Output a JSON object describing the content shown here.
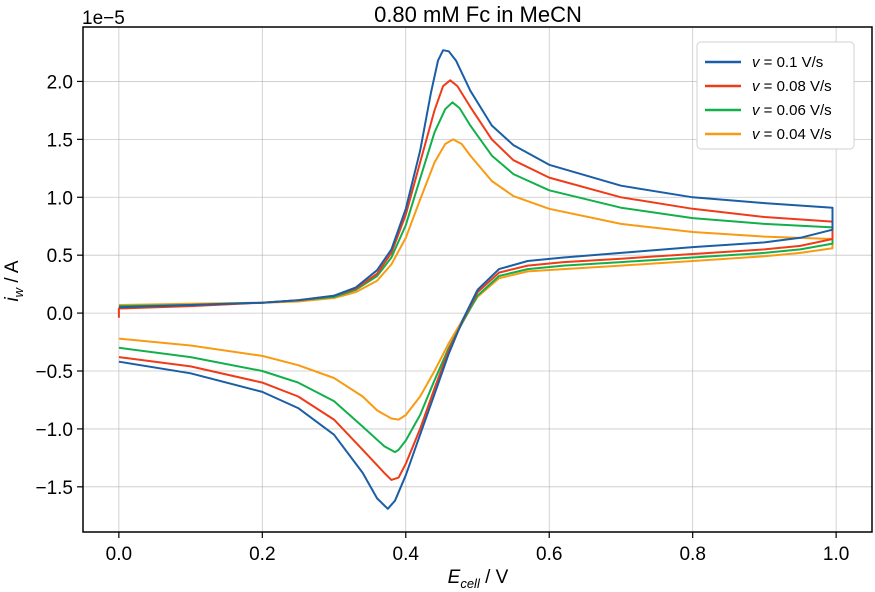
{
  "chart_data": {
    "type": "line",
    "title": "0.80 mM Fc in MeCN",
    "xlabel_main": "E",
    "xlabel_sub": "cell",
    "xlabel_unit": " / V",
    "ylabel_main": "i",
    "ylabel_sub": "w",
    "ylabel_unit": " / A",
    "y_offset_label": "1e−5",
    "xlim": [
      -0.05,
      1.05
    ],
    "ylim": [
      -1.89,
      2.47
    ],
    "x_ticks": [
      0.0,
      0.2,
      0.4,
      0.6,
      0.8,
      1.0
    ],
    "x_tick_labels": [
      "0.0",
      "0.2",
      "0.4",
      "0.6",
      "0.8",
      "1.0"
    ],
    "y_ticks": [
      -1.5,
      -1.0,
      -0.5,
      0.0,
      0.5,
      1.0,
      1.5,
      2.0
    ],
    "y_tick_labels": [
      "−1.5",
      "−1.0",
      "−0.5",
      "0.0",
      "0.5",
      "1.0",
      "1.5",
      "2.0"
    ],
    "grid": true,
    "legend_position": "top-right",
    "legend_prefix": "v = ",
    "series": [
      {
        "name": "0.1 V/s",
        "color": "#1a5fa6",
        "forward": [
          [
            0.0,
            0.05
          ],
          [
            0.1,
            0.07
          ],
          [
            0.2,
            0.09
          ],
          [
            0.25,
            0.11
          ],
          [
            0.3,
            0.15
          ],
          [
            0.33,
            0.22
          ],
          [
            0.36,
            0.37
          ],
          [
            0.38,
            0.55
          ],
          [
            0.4,
            0.9
          ],
          [
            0.42,
            1.4
          ],
          [
            0.435,
            1.9
          ],
          [
            0.445,
            2.18
          ],
          [
            0.452,
            2.27
          ],
          [
            0.46,
            2.26
          ],
          [
            0.47,
            2.18
          ],
          [
            0.49,
            1.92
          ],
          [
            0.52,
            1.62
          ],
          [
            0.55,
            1.45
          ],
          [
            0.6,
            1.28
          ],
          [
            0.7,
            1.1
          ],
          [
            0.8,
            1.0
          ],
          [
            0.9,
            0.95
          ],
          [
            0.995,
            0.91
          ]
        ],
        "reverse": [
          [
            0.995,
            0.72
          ],
          [
            0.95,
            0.65
          ],
          [
            0.9,
            0.61
          ],
          [
            0.8,
            0.57
          ],
          [
            0.7,
            0.52
          ],
          [
            0.62,
            0.48
          ],
          [
            0.57,
            0.45
          ],
          [
            0.53,
            0.38
          ],
          [
            0.5,
            0.2
          ],
          [
            0.48,
            -0.05
          ],
          [
            0.46,
            -0.35
          ],
          [
            0.44,
            -0.7
          ],
          [
            0.42,
            -1.05
          ],
          [
            0.4,
            -1.4
          ],
          [
            0.385,
            -1.62
          ],
          [
            0.375,
            -1.69
          ],
          [
            0.36,
            -1.6
          ],
          [
            0.34,
            -1.38
          ],
          [
            0.3,
            -1.05
          ],
          [
            0.25,
            -0.82
          ],
          [
            0.2,
            -0.68
          ],
          [
            0.1,
            -0.52
          ],
          [
            0.0,
            -0.42
          ]
        ]
      },
      {
        "name": "0.08 V/s",
        "color": "#f03b18",
        "forward": [
          [
            0.0,
            -0.04
          ],
          [
            0.0,
            0.04
          ],
          [
            0.1,
            0.06
          ],
          [
            0.2,
            0.09
          ],
          [
            0.25,
            0.11
          ],
          [
            0.3,
            0.15
          ],
          [
            0.33,
            0.21
          ],
          [
            0.36,
            0.34
          ],
          [
            0.38,
            0.52
          ],
          [
            0.4,
            0.85
          ],
          [
            0.42,
            1.3
          ],
          [
            0.44,
            1.75
          ],
          [
            0.452,
            1.96
          ],
          [
            0.462,
            2.01
          ],
          [
            0.472,
            1.96
          ],
          [
            0.49,
            1.78
          ],
          [
            0.52,
            1.5
          ],
          [
            0.55,
            1.32
          ],
          [
            0.6,
            1.17
          ],
          [
            0.7,
            1.0
          ],
          [
            0.8,
            0.9
          ],
          [
            0.9,
            0.83
          ],
          [
            0.995,
            0.79
          ]
        ],
        "reverse": [
          [
            0.995,
            0.64
          ],
          [
            0.95,
            0.58
          ],
          [
            0.9,
            0.55
          ],
          [
            0.8,
            0.51
          ],
          [
            0.7,
            0.47
          ],
          [
            0.62,
            0.44
          ],
          [
            0.57,
            0.41
          ],
          [
            0.53,
            0.35
          ],
          [
            0.5,
            0.18
          ],
          [
            0.48,
            -0.06
          ],
          [
            0.46,
            -0.32
          ],
          [
            0.44,
            -0.65
          ],
          [
            0.42,
            -1.0
          ],
          [
            0.4,
            -1.3
          ],
          [
            0.39,
            -1.42
          ],
          [
            0.38,
            -1.44
          ],
          [
            0.37,
            -1.38
          ],
          [
            0.34,
            -1.18
          ],
          [
            0.3,
            -0.92
          ],
          [
            0.25,
            -0.72
          ],
          [
            0.2,
            -0.6
          ],
          [
            0.1,
            -0.46
          ],
          [
            0.0,
            -0.38
          ]
        ]
      },
      {
        "name": "0.06 V/s",
        "color": "#12b04a",
        "forward": [
          [
            0.0,
            0.06
          ],
          [
            0.1,
            0.07
          ],
          [
            0.2,
            0.09
          ],
          [
            0.25,
            0.11
          ],
          [
            0.3,
            0.14
          ],
          [
            0.33,
            0.2
          ],
          [
            0.36,
            0.32
          ],
          [
            0.38,
            0.48
          ],
          [
            0.4,
            0.76
          ],
          [
            0.42,
            1.16
          ],
          [
            0.44,
            1.56
          ],
          [
            0.455,
            1.76
          ],
          [
            0.465,
            1.82
          ],
          [
            0.475,
            1.77
          ],
          [
            0.49,
            1.62
          ],
          [
            0.52,
            1.36
          ],
          [
            0.55,
            1.2
          ],
          [
            0.6,
            1.06
          ],
          [
            0.7,
            0.91
          ],
          [
            0.8,
            0.82
          ],
          [
            0.9,
            0.77
          ],
          [
            0.995,
            0.74
          ]
        ],
        "reverse": [
          [
            0.995,
            0.6
          ],
          [
            0.95,
            0.55
          ],
          [
            0.9,
            0.52
          ],
          [
            0.8,
            0.48
          ],
          [
            0.7,
            0.44
          ],
          [
            0.62,
            0.41
          ],
          [
            0.57,
            0.38
          ],
          [
            0.53,
            0.32
          ],
          [
            0.5,
            0.15
          ],
          [
            0.48,
            -0.07
          ],
          [
            0.46,
            -0.3
          ],
          [
            0.44,
            -0.58
          ],
          [
            0.42,
            -0.88
          ],
          [
            0.4,
            -1.1
          ],
          [
            0.39,
            -1.18
          ],
          [
            0.385,
            -1.2
          ],
          [
            0.37,
            -1.15
          ],
          [
            0.34,
            -0.98
          ],
          [
            0.3,
            -0.76
          ],
          [
            0.25,
            -0.6
          ],
          [
            0.2,
            -0.5
          ],
          [
            0.1,
            -0.38
          ],
          [
            0.0,
            -0.3
          ]
        ]
      },
      {
        "name": "0.04 V/s",
        "color": "#f99b12",
        "forward": [
          [
            0.0,
            0.07
          ],
          [
            0.1,
            0.08
          ],
          [
            0.2,
            0.09
          ],
          [
            0.25,
            0.1
          ],
          [
            0.3,
            0.13
          ],
          [
            0.33,
            0.18
          ],
          [
            0.36,
            0.28
          ],
          [
            0.38,
            0.42
          ],
          [
            0.4,
            0.65
          ],
          [
            0.42,
            0.98
          ],
          [
            0.44,
            1.3
          ],
          [
            0.455,
            1.46
          ],
          [
            0.466,
            1.5
          ],
          [
            0.478,
            1.46
          ],
          [
            0.49,
            1.36
          ],
          [
            0.52,
            1.14
          ],
          [
            0.55,
            1.01
          ],
          [
            0.6,
            0.9
          ],
          [
            0.7,
            0.77
          ],
          [
            0.8,
            0.7
          ],
          [
            0.9,
            0.66
          ],
          [
            0.995,
            0.64
          ]
        ],
        "reverse": [
          [
            0.995,
            0.56
          ],
          [
            0.95,
            0.52
          ],
          [
            0.9,
            0.49
          ],
          [
            0.8,
            0.45
          ],
          [
            0.7,
            0.41
          ],
          [
            0.62,
            0.38
          ],
          [
            0.57,
            0.36
          ],
          [
            0.53,
            0.3
          ],
          [
            0.5,
            0.14
          ],
          [
            0.48,
            -0.05
          ],
          [
            0.46,
            -0.26
          ],
          [
            0.44,
            -0.5
          ],
          [
            0.42,
            -0.72
          ],
          [
            0.4,
            -0.88
          ],
          [
            0.39,
            -0.92
          ],
          [
            0.38,
            -0.91
          ],
          [
            0.36,
            -0.84
          ],
          [
            0.34,
            -0.72
          ],
          [
            0.3,
            -0.56
          ],
          [
            0.25,
            -0.45
          ],
          [
            0.2,
            -0.37
          ],
          [
            0.1,
            -0.28
          ],
          [
            0.0,
            -0.22
          ]
        ]
      }
    ]
  }
}
